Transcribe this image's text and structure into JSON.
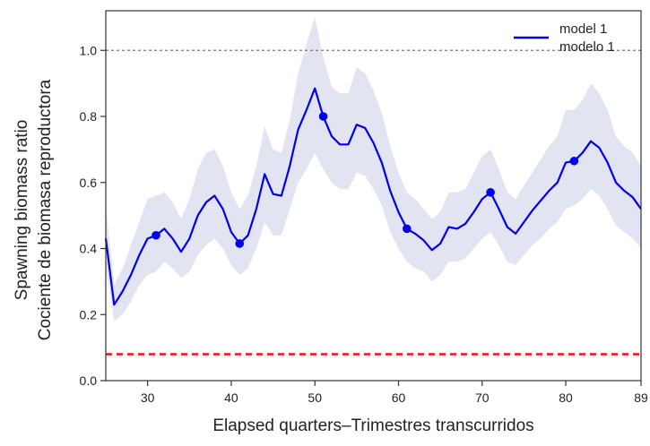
{
  "chart_data": {
    "type": "line",
    "xlabel": "Elapsed quarters–Trimestres transcurridos",
    "ylabel_lines": [
      "Spawning biomass ratio",
      "Cociente de biomasa reproductora"
    ],
    "xlim": [
      25,
      89
    ],
    "ylim": [
      0.0,
      1.12
    ],
    "xticks": [
      30,
      40,
      50,
      60,
      70,
      80,
      89
    ],
    "yticks": [
      0.0,
      0.2,
      0.4,
      0.6,
      0.8,
      1.0
    ],
    "ytick_labels": [
      "0.0",
      "0.2",
      "0.4",
      "0.6",
      "0.8",
      "1.0"
    ],
    "grid": false,
    "legend_position": "top-right",
    "legend_lines": [
      "model 1",
      "modelo 1"
    ],
    "colors": {
      "series": "#0000ee",
      "band": "#e2e4f1",
      "reference_high": "#777777",
      "reference_low": "#ee1111"
    },
    "reference_lines": [
      {
        "y": 1.0,
        "style": "dotted"
      },
      {
        "y": 0.08,
        "style": "dashed"
      }
    ],
    "series": [
      {
        "name": "model 1",
        "x": [
          25,
          26,
          27,
          28,
          29,
          30,
          31,
          32,
          33,
          34,
          35,
          36,
          37,
          38,
          39,
          40,
          41,
          42,
          43,
          44,
          45,
          46,
          47,
          48,
          49,
          50,
          51,
          52,
          53,
          54,
          55,
          56,
          57,
          58,
          59,
          60,
          61,
          62,
          63,
          64,
          65,
          66,
          67,
          68,
          69,
          70,
          71,
          72,
          73,
          74,
          75,
          76,
          77,
          78,
          79,
          80,
          81,
          82,
          83,
          84,
          85,
          86,
          87,
          88,
          89
        ],
        "y": [
          0.43,
          0.23,
          0.27,
          0.32,
          0.38,
          0.43,
          0.44,
          0.46,
          0.43,
          0.39,
          0.43,
          0.5,
          0.54,
          0.56,
          0.52,
          0.45,
          0.415,
          0.44,
          0.52,
          0.625,
          0.565,
          0.56,
          0.65,
          0.76,
          0.82,
          0.885,
          0.8,
          0.74,
          0.715,
          0.715,
          0.775,
          0.765,
          0.72,
          0.66,
          0.575,
          0.51,
          0.46,
          0.445,
          0.425,
          0.395,
          0.415,
          0.465,
          0.46,
          0.475,
          0.51,
          0.55,
          0.57,
          0.52,
          0.465,
          0.445,
          0.48,
          0.515,
          0.545,
          0.575,
          0.6,
          0.66,
          0.665,
          0.69,
          0.725,
          0.705,
          0.66,
          0.6,
          0.575,
          0.555,
          0.52
        ],
        "lower": [
          0.35,
          0.18,
          0.2,
          0.24,
          0.29,
          0.32,
          0.33,
          0.36,
          0.34,
          0.31,
          0.33,
          0.38,
          0.41,
          0.43,
          0.4,
          0.35,
          0.32,
          0.34,
          0.4,
          0.48,
          0.44,
          0.44,
          0.52,
          0.6,
          0.64,
          0.69,
          0.64,
          0.6,
          0.58,
          0.58,
          0.63,
          0.62,
          0.58,
          0.53,
          0.45,
          0.4,
          0.36,
          0.34,
          0.33,
          0.3,
          0.32,
          0.36,
          0.36,
          0.37,
          0.4,
          0.43,
          0.45,
          0.41,
          0.36,
          0.35,
          0.38,
          0.41,
          0.43,
          0.46,
          0.48,
          0.52,
          0.53,
          0.55,
          0.58,
          0.56,
          0.52,
          0.47,
          0.45,
          0.43,
          0.4
        ],
        "upper": [
          0.53,
          0.29,
          0.34,
          0.41,
          0.48,
          0.55,
          0.56,
          0.57,
          0.54,
          0.49,
          0.55,
          0.64,
          0.69,
          0.7,
          0.65,
          0.57,
          0.52,
          0.56,
          0.65,
          0.77,
          0.7,
          0.69,
          0.79,
          0.93,
          1.02,
          1.1,
          0.98,
          0.89,
          0.87,
          0.87,
          0.95,
          0.93,
          0.88,
          0.81,
          0.71,
          0.63,
          0.57,
          0.55,
          0.52,
          0.49,
          0.51,
          0.57,
          0.57,
          0.58,
          0.63,
          0.68,
          0.7,
          0.64,
          0.57,
          0.55,
          0.59,
          0.63,
          0.67,
          0.71,
          0.74,
          0.82,
          0.82,
          0.85,
          0.9,
          0.87,
          0.82,
          0.74,
          0.71,
          0.69,
          0.65
        ]
      }
    ],
    "markers": {
      "x": [
        31,
        41,
        51,
        61,
        71,
        81
      ],
      "y": [
        0.44,
        0.415,
        0.8,
        0.46,
        0.57,
        0.665
      ]
    }
  }
}
